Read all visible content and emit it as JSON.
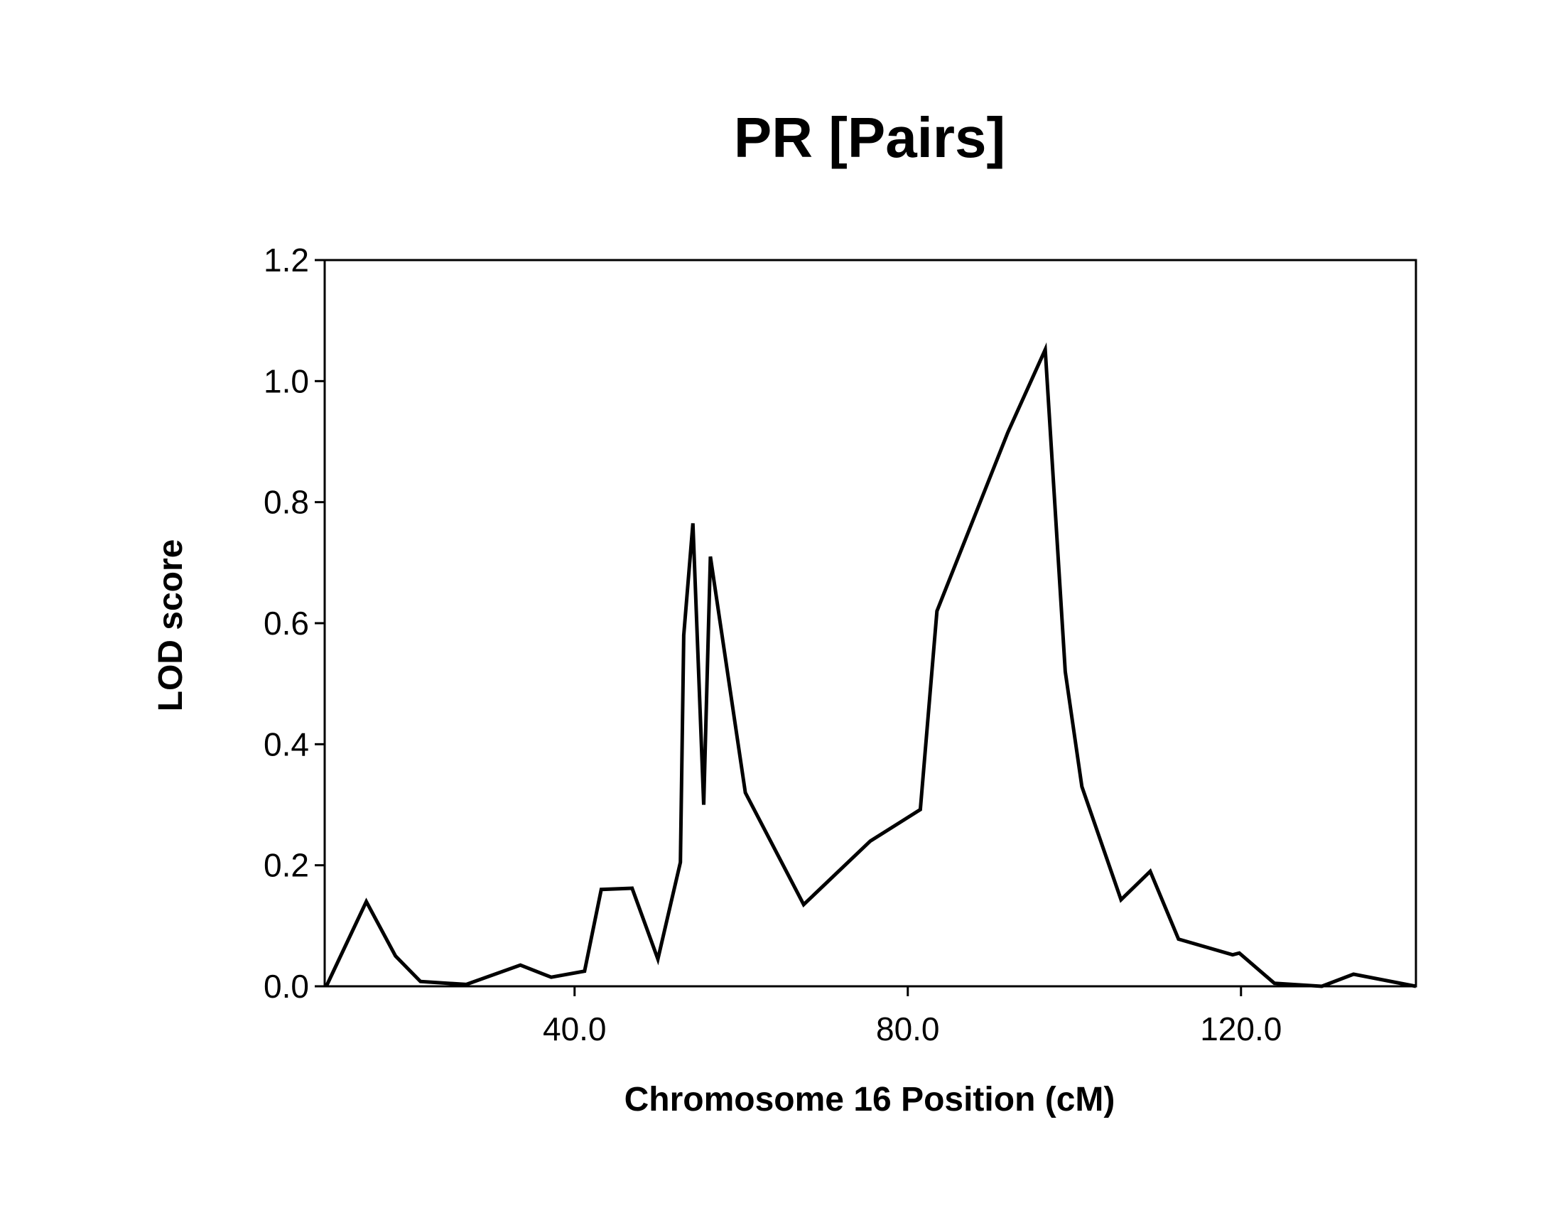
{
  "chart_data": {
    "type": "line",
    "title": "PR [Pairs]",
    "xlabel": "Chromosome 16 Position (cM)",
    "ylabel": "LOD score",
    "xlim": [
      10.0,
      141.0
    ],
    "ylim": [
      0.0,
      1.2
    ],
    "x_ticks": [
      40.0,
      80.0,
      120.0
    ],
    "x_tick_labels": [
      "40.0",
      "80.0",
      "120.0"
    ],
    "y_ticks": [
      0.0,
      0.2,
      0.4,
      0.6,
      0.8,
      1.0,
      1.2
    ],
    "y_tick_labels": [
      "0.0",
      "0.2",
      "0.4",
      "0.6",
      "0.8",
      "1.0",
      "1.2"
    ],
    "grid": false,
    "legend": "none",
    "line_color": "#000000",
    "series": [
      {
        "x": [
          10.2,
          15.0,
          18.5,
          21.5,
          27.0,
          33.5,
          37.2,
          41.2,
          43.2,
          46.9,
          50.0,
          52.7,
          53.1,
          54.2,
          55.5,
          56.3,
          60.5,
          67.5,
          75.5,
          81.5,
          83.5,
          92.0,
          96.5,
          98.9,
          100.9,
          105.6,
          109.1,
          112.5,
          119.0,
          119.8,
          124.0,
          129.7,
          133.5,
          141.0
        ],
        "y": [
          0.0,
          0.14,
          0.05,
          0.008,
          0.003,
          0.035,
          0.015,
          0.025,
          0.16,
          0.162,
          0.045,
          0.205,
          0.58,
          0.765,
          0.3,
          0.71,
          0.32,
          0.135,
          0.24,
          0.292,
          0.62,
          0.915,
          1.052,
          0.52,
          0.33,
          0.143,
          0.19,
          0.078,
          0.052,
          0.055,
          0.005,
          0.0,
          0.02,
          0.0
        ]
      }
    ]
  }
}
